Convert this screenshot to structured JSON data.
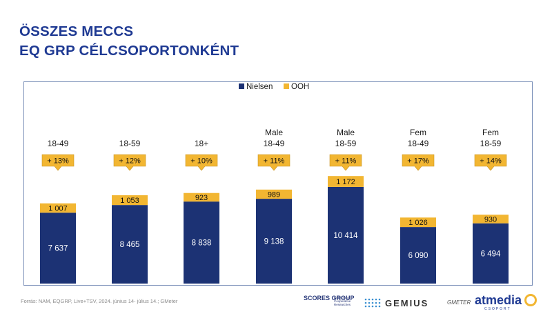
{
  "title_line1": "ÖSSZES MECCS",
  "title_line2": "EQ GRP CÉLCSOPORTONKÉNT",
  "source": "Forrás: NAM, EQGRP, Live+TSV, 2024. június 14- július 14.; GMeter",
  "logos": {
    "scores": "SCORES GROUP",
    "scores_sub": "Solution for Cooperative Researches",
    "gemius": "GEMIUS",
    "gmeter": "GMETER",
    "atmedia": "atmedia",
    "atmedia_sub": "CSOPORT"
  },
  "colors": {
    "nielsen": "#1c3274",
    "ooh": "#f2b632",
    "title": "#1f3a93"
  },
  "chart_data": {
    "type": "bar",
    "stacked": true,
    "categories": [
      [
        "18-49"
      ],
      [
        "18-59"
      ],
      [
        "18+"
      ],
      [
        "Male",
        "18-49"
      ],
      [
        "Male",
        "18-59"
      ],
      [
        "Fem",
        "18-49"
      ],
      [
        "Fem",
        "18-59"
      ]
    ],
    "series": [
      {
        "name": "Nielsen",
        "values": [
          7637,
          8465,
          8838,
          9138,
          10414,
          6090,
          6494
        ],
        "labels": [
          "7 637",
          "8 465",
          "8 838",
          "9 138",
          "10 414",
          "6 090",
          "6 494"
        ]
      },
      {
        "name": "OOH",
        "values": [
          1007,
          1053,
          923,
          989,
          1172,
          1026,
          930
        ],
        "labels": [
          "1 007",
          "1 053",
          "923",
          "989",
          "1 172",
          "1 026",
          "930"
        ]
      }
    ],
    "increase_labels": [
      "+ 13%",
      "+ 12%",
      "+ 10%",
      "+ 11%",
      "+ 11%",
      "+ 17%",
      "+ 14%"
    ],
    "legend": "top-center",
    "ylim": [
      0,
      14000
    ],
    "grid": false
  }
}
